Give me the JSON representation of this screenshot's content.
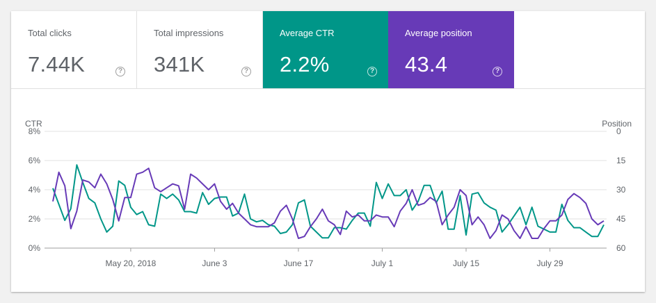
{
  "metrics": [
    {
      "label": "Total clicks",
      "value": "7.44K",
      "help": "?"
    },
    {
      "label": "Total impressions",
      "value": "341K",
      "help": "?"
    },
    {
      "label": "Average CTR",
      "value": "2.2%",
      "help": "?"
    },
    {
      "label": "Average position",
      "value": "43.4",
      "help": "?"
    }
  ],
  "colors": {
    "ctr": "#009688",
    "position": "#673ab7",
    "grid": "#e0e0e0",
    "text": "#5f6368"
  },
  "chart_data": {
    "type": "line",
    "left_axis_title": "CTR",
    "right_axis_title": "Position",
    "left_ticks": [
      "8%",
      "6%",
      "4%",
      "2%",
      "0%"
    ],
    "right_ticks": [
      "0",
      "15",
      "30",
      "45",
      "60"
    ],
    "x_ticks": [
      "May 20, 2018",
      "June 3",
      "June 17",
      "July 1",
      "July 15",
      "July 29"
    ],
    "grid": true,
    "series": [
      {
        "name": "CTR",
        "axis": "left",
        "color": "#009688",
        "ylim": [
          0,
          8
        ],
        "values": [
          4.1,
          3.0,
          1.9,
          2.7,
          5.7,
          4.5,
          3.4,
          3.1,
          2.0,
          1.1,
          1.5,
          4.6,
          4.3,
          2.8,
          2.3,
          2.5,
          1.6,
          1.5,
          3.7,
          3.4,
          3.7,
          3.3,
          2.5,
          2.5,
          2.4,
          3.8,
          3.0,
          3.4,
          3.5,
          3.5,
          2.2,
          2.4,
          3.7,
          2.0,
          1.8,
          1.9,
          1.6,
          1.5,
          1.0,
          1.1,
          1.6,
          3.1,
          3.3,
          1.5,
          1.1,
          0.7,
          0.7,
          1.4,
          1.4,
          1.3,
          1.9,
          2.4,
          2.4,
          1.5,
          4.5,
          3.4,
          4.4,
          3.6,
          3.6,
          4.0,
          2.6,
          3.2,
          4.3,
          4.3,
          3.1,
          3.9,
          1.3,
          1.3,
          3.6,
          0.9,
          3.7,
          3.8,
          3.1,
          2.8,
          2.6,
          1.1,
          1.6,
          2.2,
          2.8,
          1.6,
          2.8,
          1.5,
          1.3,
          1.1,
          1.1,
          3.0,
          1.9,
          1.4,
          1.4,
          1.1,
          0.8,
          0.8,
          1.6
        ]
      },
      {
        "name": "Position",
        "axis": "right",
        "color": "#673ab7",
        "ylim": [
          0,
          60
        ],
        "values": [
          36,
          21,
          28,
          50,
          41,
          25,
          26,
          29,
          22,
          27,
          35,
          46,
          34,
          34,
          22,
          21,
          19,
          29,
          31,
          29,
          27,
          28,
          40,
          22,
          24,
          27,
          30,
          27,
          36,
          40,
          37,
          42,
          45,
          48,
          49,
          49,
          49,
          47,
          41,
          38,
          45,
          55,
          54,
          49,
          45,
          40,
          46,
          48,
          53,
          41,
          44,
          43,
          46,
          46,
          43,
          44,
          44,
          49,
          41,
          37,
          30,
          38,
          37,
          34,
          36,
          48,
          43,
          39,
          30,
          33,
          48,
          44,
          48,
          55,
          51,
          43,
          45,
          51,
          55,
          49,
          55,
          55,
          50,
          46,
          46,
          43,
          35,
          32,
          34,
          37,
          45,
          48,
          46
        ]
      }
    ]
  }
}
